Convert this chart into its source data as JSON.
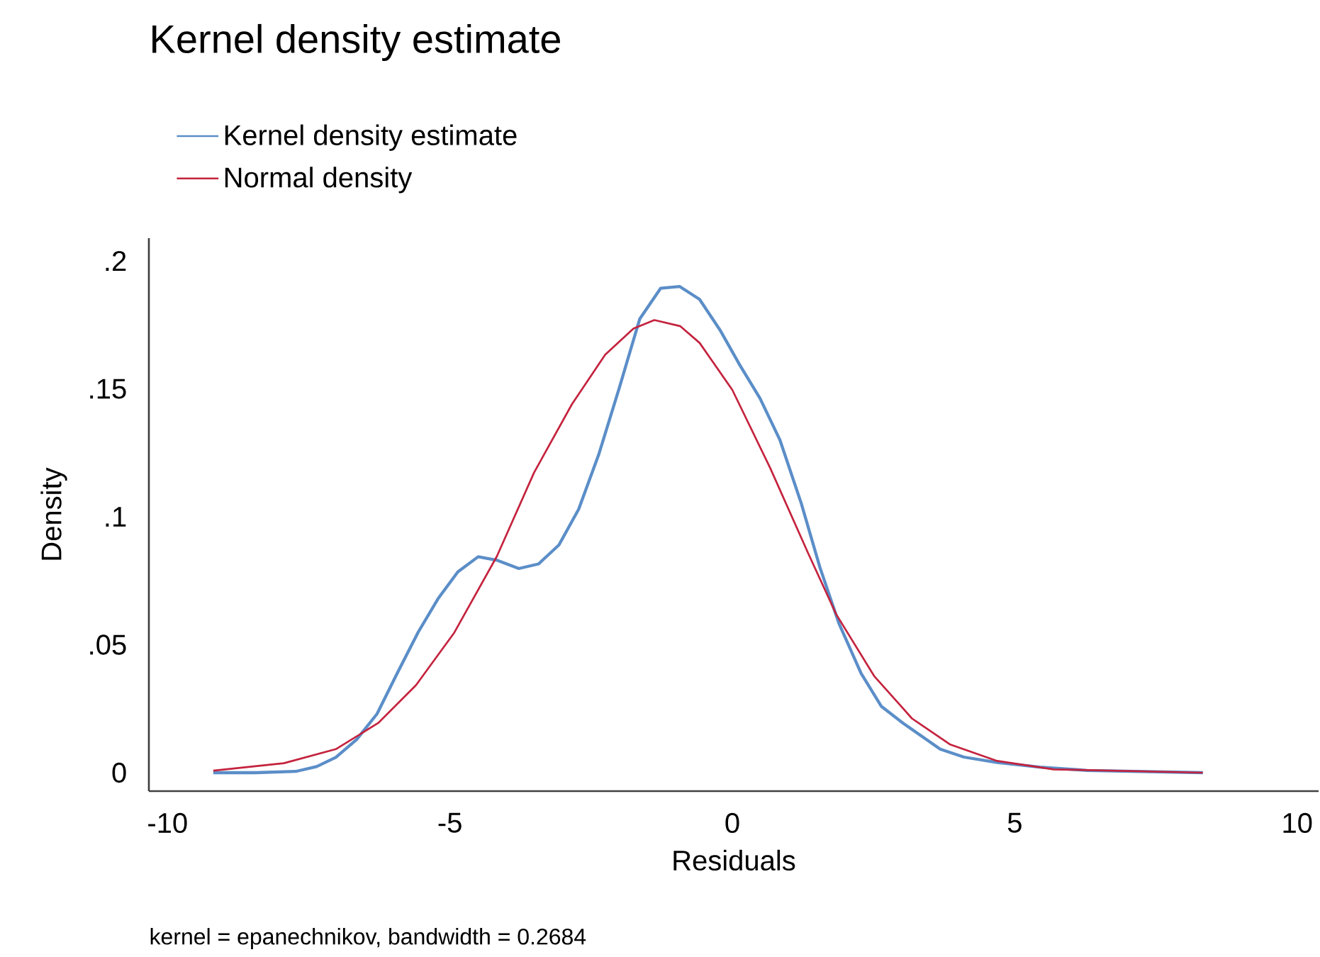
{
  "chart_data": {
    "type": "line",
    "title": "Kernel density estimate",
    "xlabel": "Residuals",
    "ylabel": "Density",
    "annotations": [
      "kernel = epanechnikov, bandwidth = 0.2684"
    ],
    "xlim": [
      -10.33,
      10.38
    ],
    "ylim": [
      -0.0072,
      0.2089
    ],
    "xticks": [
      -10,
      -5,
      0,
      5,
      10
    ],
    "yticks": [
      {
        "value": 0,
        "label": "0"
      },
      {
        "value": 0.05,
        "label": ".05"
      },
      {
        "value": 0.1,
        "label": ".1"
      },
      {
        "value": 0.15,
        "label": ".15"
      },
      {
        "value": 0.2,
        "label": ".2"
      }
    ],
    "legend": "top left",
    "marker": "none",
    "line_style": "solid",
    "series": [
      {
        "name": "Kernel density estimate",
        "color": "#5b8ec8",
        "x": [
          -9.19,
          -8.44,
          -7.73,
          -7.36,
          -7.02,
          -6.65,
          -6.29,
          -5.93,
          -5.56,
          -5.21,
          -4.86,
          -4.5,
          -4.16,
          -3.78,
          -3.43,
          -3.07,
          -2.72,
          -2.36,
          -2.0,
          -1.64,
          -1.27,
          -0.93,
          -0.58,
          -0.21,
          0.13,
          0.49,
          0.84,
          1.22,
          1.55,
          1.89,
          2.28,
          2.64,
          3.02,
          3.68,
          4.1,
          4.69,
          5.44,
          6.28,
          8.33
        ],
        "values": [
          0.0,
          0.0,
          0.0005,
          0.0024,
          0.006,
          0.013,
          0.023,
          0.039,
          0.055,
          0.068,
          0.0785,
          0.0844,
          0.083,
          0.0798,
          0.0816,
          0.089,
          0.103,
          0.1247,
          0.1505,
          0.1773,
          0.1893,
          0.19,
          0.185,
          0.1727,
          0.1594,
          0.1463,
          0.1302,
          0.1053,
          0.0803,
          0.0582,
          0.0388,
          0.0259,
          0.0194,
          0.0092,
          0.0061,
          0.004,
          0.0022,
          0.0009,
          0.0
        ]
      },
      {
        "name": "Normal density",
        "color": "#c4233e",
        "x": [
          -9.19,
          -7.94,
          -7.02,
          -6.27,
          -5.6,
          -4.93,
          -4.17,
          -3.51,
          -2.84,
          -2.25,
          -1.75,
          -1.38,
          -0.92,
          -0.58,
          0.0,
          0.67,
          1.34,
          1.84,
          2.51,
          3.18,
          3.85,
          4.69,
          5.69,
          8.33
        ],
        "values": [
          0.0008,
          0.0037,
          0.0092,
          0.0194,
          0.0342,
          0.0545,
          0.0845,
          0.1173,
          0.144,
          0.1634,
          0.1736,
          0.1769,
          0.1745,
          0.168,
          0.1496,
          0.1191,
          0.0859,
          0.0619,
          0.0378,
          0.0212,
          0.0111,
          0.0046,
          0.0013,
          0.0
        ]
      }
    ]
  }
}
